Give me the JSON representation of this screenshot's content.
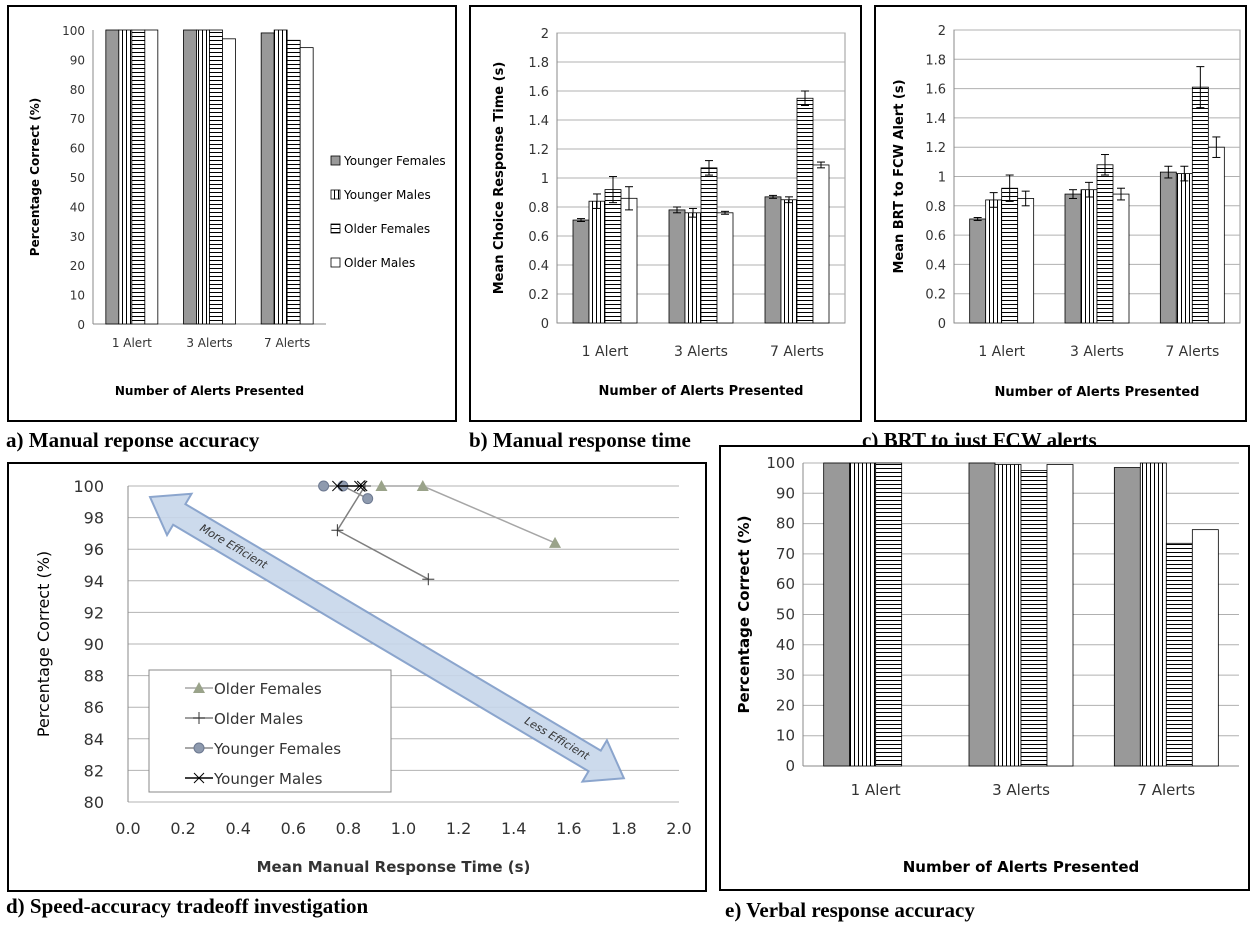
{
  "patterns": {
    "Younger Females": "solid-gray",
    "Younger Males": "vertical-lines",
    "Older Females": "horizontal-lines",
    "Older Males": "white"
  },
  "colors": {
    "bar_gray": "#999999",
    "arrow_fill": "#c7d6ea",
    "arrow_stroke": "#7f9cc8",
    "of_marker": "#9aa38a",
    "yf_marker": "#8e9aae",
    "of_line": "#a6a6a6",
    "om_line": "#7f7f7f"
  },
  "captions": {
    "a": "a)   Manual reponse accuracy",
    "b": "b)   Manual response time",
    "c": "c)   BRT to just FCW alerts",
    "d": "d)   Speed-accuracy tradeoff investigation",
    "e": "e)   Verbal response accuracy"
  },
  "chart_data": [
    {
      "id": "a",
      "type": "bar",
      "categories": [
        "1 Alert",
        "3 Alerts",
        "7 Alerts"
      ],
      "series": [
        {
          "name": "Younger Females",
          "values": [
            100,
            100,
            99
          ]
        },
        {
          "name": "Younger Males",
          "values": [
            100,
            100,
            100
          ]
        },
        {
          "name": "Older Females",
          "values": [
            100,
            100,
            96.5
          ]
        },
        {
          "name": "Older Males",
          "values": [
            100,
            97,
            94
          ]
        }
      ],
      "xlabel": "Number of Alerts Presented",
      "ylabel": "Percentage Correct (%)",
      "ylim": [
        0,
        100
      ],
      "yticks": [
        "0",
        "10",
        "20",
        "30",
        "40",
        "50",
        "60",
        "70",
        "80",
        "90",
        "100"
      ],
      "legend": "right",
      "grid": false
    },
    {
      "id": "b",
      "type": "bar",
      "categories": [
        "1 Alert",
        "3 Alerts",
        "7 Alerts"
      ],
      "series": [
        {
          "name": "Younger Females",
          "values": [
            0.71,
            0.78,
            0.87
          ],
          "err": [
            0.01,
            0.02,
            0.01
          ]
        },
        {
          "name": "Younger Males",
          "values": [
            0.84,
            0.76,
            0.85
          ],
          "err": [
            0.05,
            0.03,
            0.02
          ]
        },
        {
          "name": "Older Females",
          "values": [
            0.92,
            1.07,
            1.55
          ],
          "err": [
            0.09,
            0.05,
            0.05
          ]
        },
        {
          "name": "Older Males",
          "values": [
            0.86,
            0.76,
            1.09
          ],
          "err": [
            0.08,
            0.01,
            0.02
          ]
        }
      ],
      "xlabel": "Number of Alerts Presented",
      "ylabel": "Mean Choice Response Time (s)",
      "ylim": [
        0,
        2
      ],
      "yticks": [
        "0",
        "0.2",
        "0.4",
        "0.6",
        "0.8",
        "1",
        "1.2",
        "1.4",
        "1.6",
        "1.8",
        "2"
      ],
      "grid": true
    },
    {
      "id": "c",
      "type": "bar",
      "categories": [
        "1 Alert",
        "3 Alerts",
        "7 Alerts"
      ],
      "series": [
        {
          "name": "Younger Females",
          "values": [
            0.71,
            0.88,
            1.03
          ],
          "err": [
            0.01,
            0.03,
            0.04
          ]
        },
        {
          "name": "Younger Males",
          "values": [
            0.84,
            0.91,
            1.02
          ],
          "err": [
            0.05,
            0.05,
            0.05
          ]
        },
        {
          "name": "Older Females",
          "values": [
            0.92,
            1.08,
            1.61
          ],
          "err": [
            0.09,
            0.07,
            0.14
          ]
        },
        {
          "name": "Older Males",
          "values": [
            0.85,
            0.88,
            1.2
          ],
          "err": [
            0.05,
            0.04,
            0.07
          ]
        }
      ],
      "xlabel": "Number of Alerts Presented",
      "ylabel": "Mean BRT to FCW Alert (s)",
      "ylim": [
        0,
        2
      ],
      "yticks": [
        "0",
        "0.2",
        "0.4",
        "0.6",
        "0.8",
        "1",
        "1.2",
        "1.4",
        "1.6",
        "1.8",
        "2"
      ],
      "grid": true
    },
    {
      "id": "d",
      "type": "scatter",
      "xlabel": "Mean Manual Response Time (s)",
      "ylabel": "Percentage Correct (%)",
      "xlim": [
        0,
        2
      ],
      "ylim": [
        80,
        100
      ],
      "xticks": [
        "0.0",
        "0.2",
        "0.4",
        "0.6",
        "0.8",
        "1.0",
        "1.2",
        "1.4",
        "1.6",
        "1.8",
        "2.0"
      ],
      "yticks": [
        "80",
        "82",
        "84",
        "86",
        "88",
        "90",
        "92",
        "94",
        "96",
        "98",
        "100"
      ],
      "grid": true,
      "legend": "lower-left",
      "series": [
        {
          "name": "Older Females",
          "marker": "triangle",
          "x": [
            0.92,
            1.07,
            1.55
          ],
          "y": [
            100,
            100,
            96.4
          ]
        },
        {
          "name": "Older Males",
          "marker": "plus",
          "x": [
            0.86,
            0.76,
            1.09
          ],
          "y": [
            100,
            97.2,
            94.1
          ]
        },
        {
          "name": "Younger Females",
          "marker": "circle",
          "x": [
            0.71,
            0.78,
            0.87
          ],
          "y": [
            100,
            100,
            99.2
          ]
        },
        {
          "name": "Younger Males",
          "marker": "x",
          "x": [
            0.84,
            0.76,
            0.85
          ],
          "y": [
            100,
            100,
            100
          ]
        }
      ],
      "annotations": [
        "More Efficient",
        "Less Efficient"
      ]
    },
    {
      "id": "e",
      "type": "bar",
      "categories": [
        "1 Alert",
        "3 Alerts",
        "7 Alerts"
      ],
      "series": [
        {
          "name": "Younger Females",
          "values": [
            100,
            100,
            98.5
          ]
        },
        {
          "name": "Younger Males",
          "values": [
            100,
            99.5,
            100
          ]
        },
        {
          "name": "Older Females",
          "values": [
            100,
            97.5,
            73.5
          ]
        },
        {
          "name": "Older Males",
          "values": [
            0,
            99.5,
            78
          ]
        }
      ],
      "xlabel": "Number of Alerts Presented",
      "ylabel": "Percentage Correct (%)",
      "ylim": [
        0,
        100
      ],
      "yticks": [
        "0",
        "10",
        "20",
        "30",
        "40",
        "50",
        "60",
        "70",
        "80",
        "90",
        "100"
      ],
      "grid": true
    }
  ]
}
